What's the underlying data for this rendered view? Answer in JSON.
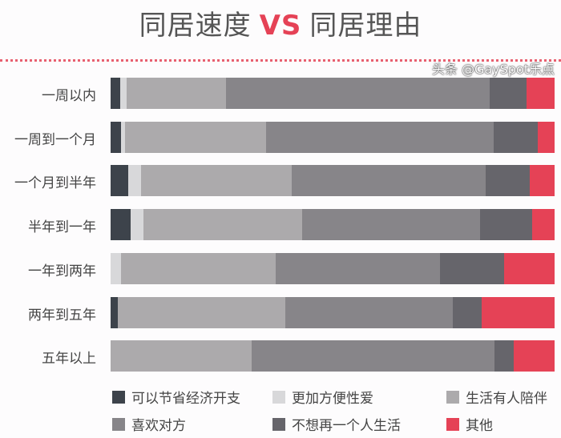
{
  "chart_data": {
    "type": "bar",
    "stacked": true,
    "orientation": "horizontal",
    "title": {
      "part1": "同居速度",
      "vs": "VS",
      "part2": "同居理由"
    },
    "unit": "percent",
    "categories": [
      "一周以内",
      "一周到一个月",
      "一个月到半年",
      "半年到一年",
      "一年到两年",
      "两年到五年",
      "五年以上"
    ],
    "series": [
      {
        "name": "可以节省经济开支",
        "color": "#3d434b",
        "values": [
          2.2,
          2.3,
          4.0,
          4.5,
          0,
          1.6,
          0
        ]
      },
      {
        "name": "更加方便性爱",
        "color": "#d8d8da",
        "values": [
          1.4,
          0.9,
          2.9,
          2.9,
          2.3,
          0,
          0
        ]
      },
      {
        "name": "生活有人陪伴",
        "color": "#acaaac",
        "values": [
          22.4,
          31.8,
          33.9,
          35.7,
          34.8,
          37.7,
          31.8
        ]
      },
      {
        "name": "喜欢对方",
        "color": "#878589",
        "values": [
          59.4,
          51.3,
          43.7,
          40.1,
          37.0,
          37.7,
          54.7
        ]
      },
      {
        "name": "不想再一个人生活",
        "color": "#66656b",
        "values": [
          8.3,
          9.9,
          9.9,
          11.7,
          14.4,
          6.5,
          4.3
        ]
      },
      {
        "name": "其他",
        "color": "#e54256",
        "values": [
          6.3,
          3.8,
          5.6,
          5.1,
          11.4,
          16.4,
          9.2
        ]
      }
    ],
    "xlim": [
      0,
      100
    ],
    "grid": false,
    "legend_position": "bottom"
  },
  "watermark": "头条 @GaySpot乐点"
}
